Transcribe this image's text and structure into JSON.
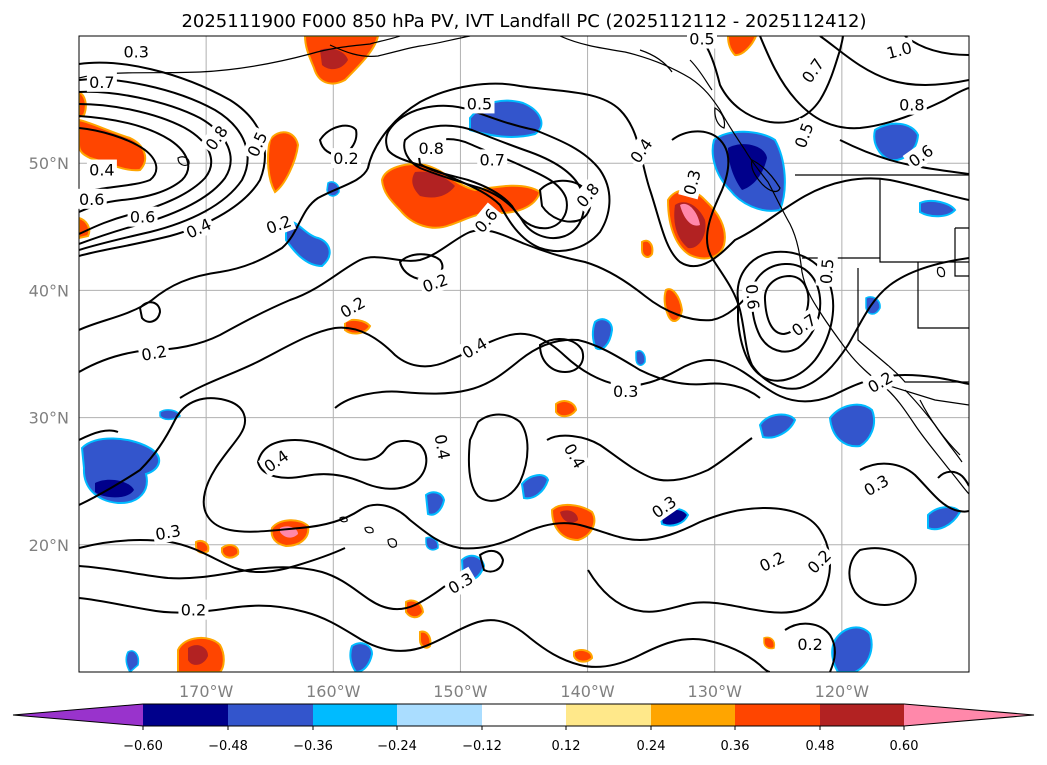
{
  "title": "2025111900 F000 850 hPa PV, IVT Landfall PC (2025112112 - 2025112412)",
  "map": {
    "lon_range": [
      -180,
      -110
    ],
    "lat_range": [
      10,
      60
    ],
    "lat_ticks": [
      {
        "lat": 50,
        "label": "50°N"
      },
      {
        "lat": 40,
        "label": "40°N"
      },
      {
        "lat": 30,
        "label": "30°N"
      },
      {
        "lat": 20,
        "label": "20°N"
      }
    ],
    "lon_ticks": [
      {
        "lon": -170,
        "label": "170°W"
      },
      {
        "lon": -160,
        "label": "160°W"
      },
      {
        "lon": -150,
        "label": "150°W"
      },
      {
        "lon": -140,
        "label": "140°W"
      },
      {
        "lon": -130,
        "label": "130°W"
      },
      {
        "lon": -120,
        "label": "120°W"
      }
    ],
    "contour_labels": [
      {
        "text": "0.3",
        "lon": -175.5,
        "lat": 58.8,
        "rot": 0
      },
      {
        "text": "0.7",
        "lon": -178.2,
        "lat": 56.4,
        "rot": 0
      },
      {
        "text": "0.8",
        "lon": -169.2,
        "lat": 52.0,
        "rot": -55
      },
      {
        "text": "0.5",
        "lon": -166.0,
        "lat": 51.5,
        "rot": -65
      },
      {
        "text": "0.4",
        "lon": -178.2,
        "lat": 49.5,
        "rot": 0
      },
      {
        "text": "0.6",
        "lon": -179.0,
        "lat": 47.2,
        "rot": 0
      },
      {
        "text": "0.6",
        "lon": -175.0,
        "lat": 45.8,
        "rot": 0
      },
      {
        "text": "0.4",
        "lon": -170.6,
        "lat": 44.9,
        "rot": -25
      },
      {
        "text": "0.2",
        "lon": -164.3,
        "lat": 45.2,
        "rot": -20
      },
      {
        "text": "0.2",
        "lon": -159.0,
        "lat": 50.4,
        "rot": 0
      },
      {
        "text": "0.5",
        "lon": -148.5,
        "lat": 54.7,
        "rot": 0
      },
      {
        "text": "0.8",
        "lon": -152.3,
        "lat": 51.2,
        "rot": 0
      },
      {
        "text": "0.7",
        "lon": -147.5,
        "lat": 50.3,
        "rot": 0
      },
      {
        "text": "0.6",
        "lon": -148.0,
        "lat": 45.5,
        "rot": -50
      },
      {
        "text": "0.8",
        "lon": -140.0,
        "lat": 47.5,
        "rot": -50
      },
      {
        "text": "0.4",
        "lon": -135.8,
        "lat": 51.0,
        "rot": -55
      },
      {
        "text": "0.3",
        "lon": -131.8,
        "lat": 48.5,
        "rot": -75
      },
      {
        "text": "0.5",
        "lon": -131.0,
        "lat": 59.8,
        "rot": 0
      },
      {
        "text": "0.7",
        "lon": -122.3,
        "lat": 57.3,
        "rot": -55
      },
      {
        "text": "1.0",
        "lon": -115.5,
        "lat": 58.9,
        "rot": -15
      },
      {
        "text": "0.8",
        "lon": -114.5,
        "lat": 54.6,
        "rot": 0
      },
      {
        "text": "0.6",
        "lon": -113.8,
        "lat": 50.6,
        "rot": -35
      },
      {
        "text": "0.5",
        "lon": -123.0,
        "lat": 52.2,
        "rot": -70
      },
      {
        "text": "0.5",
        "lon": -121.2,
        "lat": 41.5,
        "rot": -85
      },
      {
        "text": "0.6",
        "lon": -127.0,
        "lat": 39.5,
        "rot": 85
      },
      {
        "text": "0.7",
        "lon": -123.0,
        "lat": 37.3,
        "rot": -35
      },
      {
        "text": "0.2",
        "lon": -152.0,
        "lat": 40.6,
        "rot": -20
      },
      {
        "text": "0.2",
        "lon": -158.5,
        "lat": 38.7,
        "rot": -30
      },
      {
        "text": "0.2",
        "lon": -174.1,
        "lat": 35.1,
        "rot": -10
      },
      {
        "text": "0.4",
        "lon": -148.9,
        "lat": 35.5,
        "rot": -30
      },
      {
        "text": "0.3",
        "lon": -137.0,
        "lat": 32.1,
        "rot": 0
      },
      {
        "text": "0.4",
        "lon": -151.4,
        "lat": 27.7,
        "rot": 80
      },
      {
        "text": "0.4",
        "lon": -141.0,
        "lat": 27.0,
        "rot": 60
      },
      {
        "text": "0.4",
        "lon": -164.5,
        "lat": 26.6,
        "rot": -35
      },
      {
        "text": "0.3",
        "lon": -173.0,
        "lat": 21.0,
        "rot": -10
      },
      {
        "text": "0.3",
        "lon": -134.0,
        "lat": 23.0,
        "rot": -35
      },
      {
        "text": "0.3",
        "lon": -150.0,
        "lat": 17.0,
        "rot": -30
      },
      {
        "text": "0.3",
        "lon": -117.3,
        "lat": 24.7,
        "rot": -30
      },
      {
        "text": "0.2",
        "lon": -117.0,
        "lat": 32.8,
        "rot": -30
      },
      {
        "text": "0.2",
        "lon": -125.5,
        "lat": 18.7,
        "rot": -25
      },
      {
        "text": "0.2",
        "lon": -121.8,
        "lat": 18.7,
        "rot": -45
      },
      {
        "text": "0.2",
        "lon": -171.0,
        "lat": 14.9,
        "rot": 0
      },
      {
        "text": "0.2",
        "lon": -122.5,
        "lat": 12.2,
        "rot": 0
      }
    ]
  },
  "colorbar": {
    "ticks": [
      "−0.60",
      "−0.48",
      "−0.36",
      "−0.24",
      "−0.12",
      "0.12",
      "0.24",
      "0.36",
      "0.48",
      "0.60"
    ],
    "colors": [
      "#9933cc",
      "#00008b",
      "#3355cc",
      "#00bbff",
      "#aaddff",
      "#ffffff",
      "#ffe88a",
      "#ffa500",
      "#ff4500",
      "#b22222",
      "#ff88aa"
    ]
  }
}
